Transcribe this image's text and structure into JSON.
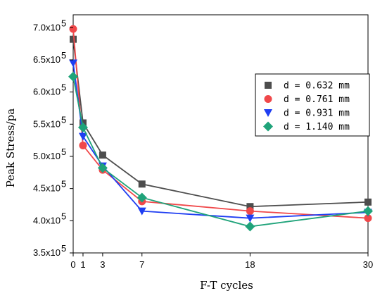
{
  "chart_data": {
    "type": "line",
    "xlabel": "F-T cycles",
    "ylabel": "Peak Stress/pa",
    "x": [
      0,
      1,
      3,
      7,
      18,
      30
    ],
    "x_tick_labels": [
      "0",
      "1",
      "3",
      "7",
      "18",
      "30"
    ],
    "xlim": [
      0,
      30
    ],
    "ylim": [
      350000,
      720000
    ],
    "y_ticks": [
      350000,
      400000,
      450000,
      500000,
      550000,
      600000,
      650000,
      700000
    ],
    "y_tick_labels": [
      {
        "mantissa": "3.5x10",
        "exp": "5"
      },
      {
        "mantissa": "4.0x10",
        "exp": "5"
      },
      {
        "mantissa": "4.5x10",
        "exp": "5"
      },
      {
        "mantissa": "5.0x10",
        "exp": "5"
      },
      {
        "mantissa": "5.5x10",
        "exp": "5"
      },
      {
        "mantissa": "6.0x10",
        "exp": "5"
      },
      {
        "mantissa": "6.5x10",
        "exp": "5"
      },
      {
        "mantissa": "7.0x10",
        "exp": "5"
      }
    ],
    "legend_position": "right",
    "grid": false,
    "series": [
      {
        "name": "d = 0.632 mm",
        "color": "#4d4d4d",
        "marker": "square",
        "values": [
          682000,
          552000,
          502000,
          457000,
          422000,
          429000
        ]
      },
      {
        "name": "d = 0.761 mm",
        "color": "#f0484a",
        "marker": "circle",
        "values": [
          698000,
          517000,
          479000,
          430000,
          415000,
          404000
        ]
      },
      {
        "name": "d = 0.931 mm",
        "color": "#1f3ef2",
        "marker": "triangle-down",
        "values": [
          645000,
          531000,
          485000,
          415000,
          404000,
          413000
        ]
      },
      {
        "name": "d = 1.140 mm",
        "color": "#1fa37a",
        "marker": "diamond",
        "values": [
          624000,
          545000,
          482000,
          436000,
          391000,
          415000
        ]
      }
    ]
  }
}
